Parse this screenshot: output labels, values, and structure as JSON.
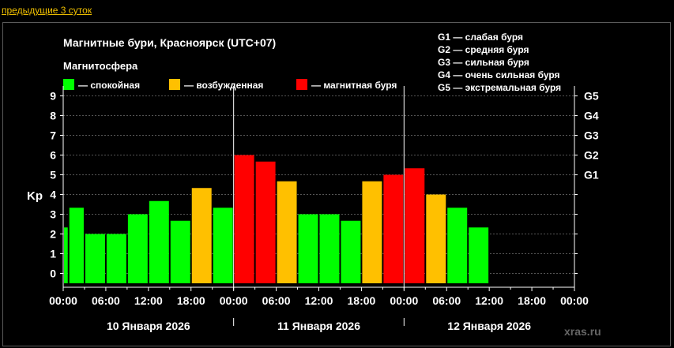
{
  "nav": {
    "prev_link": "предыдущие 3 суток"
  },
  "chart_data": {
    "type": "bar",
    "title": "Магнитные бури, Красноярск (UTC+07)",
    "legend_title": "Магнитосфера",
    "legend": [
      {
        "label": "— спокойная",
        "color": "#00ff00"
      },
      {
        "label": "— возбужденная",
        "color": "#ffc000"
      },
      {
        "label": "— магнитная буря",
        "color": "#ff0000"
      }
    ],
    "storm_legend": [
      "G1 — слабая буря",
      "G2 — средняя буря",
      "G3 — сильная буря",
      "G4 — очень сильная буря",
      "G5 — экстремальная буря"
    ],
    "ylabel": "Kp",
    "ylim": [
      0,
      9
    ],
    "yticks": [
      "0",
      "1",
      "2",
      "3",
      "4",
      "5",
      "6",
      "7",
      "8",
      "9"
    ],
    "right_ticks": [
      {
        "value": 5,
        "label": "G1"
      },
      {
        "value": 6,
        "label": "G2"
      },
      {
        "value": 7,
        "label": "G3"
      },
      {
        "value": 8,
        "label": "G4"
      },
      {
        "value": 9,
        "label": "G5"
      }
    ],
    "x_tick_labels": [
      "00:00",
      "06:00",
      "12:00",
      "18:00",
      "00:00",
      "06:00",
      "12:00",
      "18:00",
      "00:00",
      "06:00",
      "12:00",
      "18:00",
      "00:00"
    ],
    "days": [
      "10 Января 2026",
      "11 Января 2026",
      "12 Января 2026"
    ],
    "bars": [
      {
        "start_hour": 0,
        "end_hour": 0.75,
        "kp": 2.33,
        "level": "quiet"
      },
      {
        "start_hour": 0.75,
        "end_hour": 3,
        "kp": 3.33,
        "level": "quiet"
      },
      {
        "start_hour": 3,
        "end_hour": 6,
        "kp": 2.0,
        "level": "quiet"
      },
      {
        "start_hour": 6,
        "end_hour": 9,
        "kp": 2.0,
        "level": "quiet"
      },
      {
        "start_hour": 9,
        "end_hour": 12,
        "kp": 3.0,
        "level": "quiet"
      },
      {
        "start_hour": 12,
        "end_hour": 15,
        "kp": 3.67,
        "level": "quiet"
      },
      {
        "start_hour": 15,
        "end_hour": 18,
        "kp": 2.67,
        "level": "quiet"
      },
      {
        "start_hour": 18,
        "end_hour": 21,
        "kp": 4.33,
        "level": "active"
      },
      {
        "start_hour": 21,
        "end_hour": 24,
        "kp": 3.33,
        "level": "quiet"
      },
      {
        "start_hour": 24,
        "end_hour": 27,
        "kp": 6.0,
        "level": "storm"
      },
      {
        "start_hour": 27,
        "end_hour": 30,
        "kp": 5.67,
        "level": "storm"
      },
      {
        "start_hour": 30,
        "end_hour": 33,
        "kp": 4.67,
        "level": "active"
      },
      {
        "start_hour": 33,
        "end_hour": 36,
        "kp": 3.0,
        "level": "quiet"
      },
      {
        "start_hour": 36,
        "end_hour": 39,
        "kp": 3.0,
        "level": "quiet"
      },
      {
        "start_hour": 39,
        "end_hour": 42,
        "kp": 2.67,
        "level": "quiet"
      },
      {
        "start_hour": 42,
        "end_hour": 45,
        "kp": 4.67,
        "level": "active"
      },
      {
        "start_hour": 45,
        "end_hour": 48,
        "kp": 5.0,
        "level": "storm"
      },
      {
        "start_hour": 48,
        "end_hour": 51,
        "kp": 5.33,
        "level": "storm"
      },
      {
        "start_hour": 51,
        "end_hour": 54,
        "kp": 4.0,
        "level": "active"
      },
      {
        "start_hour": 54,
        "end_hour": 57,
        "kp": 3.33,
        "level": "quiet"
      },
      {
        "start_hour": 57,
        "end_hour": 60,
        "kp": 2.33,
        "level": "quiet"
      }
    ],
    "level_colors": {
      "quiet": "#00ff00",
      "active": "#ffc000",
      "storm": "#ff0000"
    },
    "x_range_hours": [
      0,
      72
    ],
    "grid": "dashed horizontal",
    "watermark": "xras.ru"
  }
}
